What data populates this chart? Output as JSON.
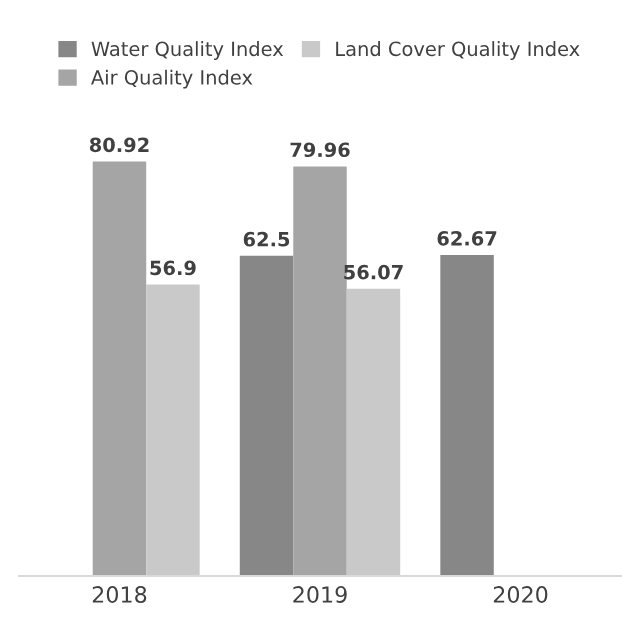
{
  "chart_data": {
    "type": "bar",
    "categories": [
      "2018",
      "2019",
      "2020"
    ],
    "series": [
      {
        "name": "Water Quality Index",
        "color": "#878787",
        "values": [
          null,
          62.5,
          62.67
        ]
      },
      {
        "name": "Air Quality Index",
        "color": "#a5a5a5",
        "values": [
          80.92,
          79.96,
          null
        ]
      },
      {
        "name": "Land Cover Quality Index",
        "color": "#c9c9c9",
        "values": [
          56.9,
          56.07,
          null
        ]
      }
    ],
    "data_labels": true,
    "legend": "top",
    "grid": false
  }
}
